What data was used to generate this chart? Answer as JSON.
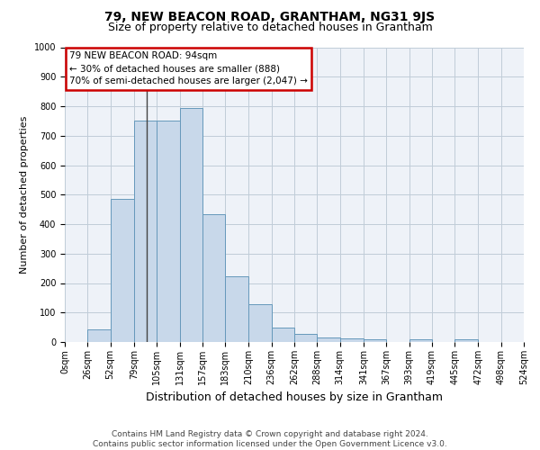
{
  "title": "79, NEW BEACON ROAD, GRANTHAM, NG31 9JS",
  "subtitle": "Size of property relative to detached houses in Grantham",
  "xlabel": "Distribution of detached houses by size in Grantham",
  "ylabel": "Number of detached properties",
  "footer_line1": "Contains HM Land Registry data © Crown copyright and database right 2024.",
  "footer_line2": "Contains public sector information licensed under the Open Government Licence v3.0.",
  "bin_edges": [
    0,
    26,
    52,
    79,
    105,
    131,
    157,
    183,
    210,
    236,
    262,
    288,
    314,
    341,
    367,
    393,
    419,
    445,
    472,
    498,
    524
  ],
  "bar_heights": [
    0,
    43,
    487,
    752,
    752,
    795,
    435,
    222,
    127,
    48,
    28,
    15,
    13,
    9,
    0,
    8,
    0,
    9,
    0,
    0
  ],
  "bar_color": "#c8d8ea",
  "bar_edge_color": "#6699bb",
  "ylim": [
    0,
    1000
  ],
  "yticks": [
    0,
    100,
    200,
    300,
    400,
    500,
    600,
    700,
    800,
    900,
    1000
  ],
  "property_size": 94,
  "annotation_line1": "79 NEW BEACON ROAD: 94sqm",
  "annotation_line2": "← 30% of detached houses are smaller (888)",
  "annotation_line3": "70% of semi-detached houses are larger (2,047) →",
  "annotation_box_color": "#cc0000",
  "vline_color": "#444444",
  "grid_color": "#c0ccd8",
  "bg_color": "#eef2f8",
  "title_fontsize": 10,
  "subtitle_fontsize": 9,
  "xlabel_fontsize": 9,
  "ylabel_fontsize": 8,
  "tick_fontsize": 7,
  "annotation_fontsize": 7.5,
  "footer_fontsize": 6.5
}
